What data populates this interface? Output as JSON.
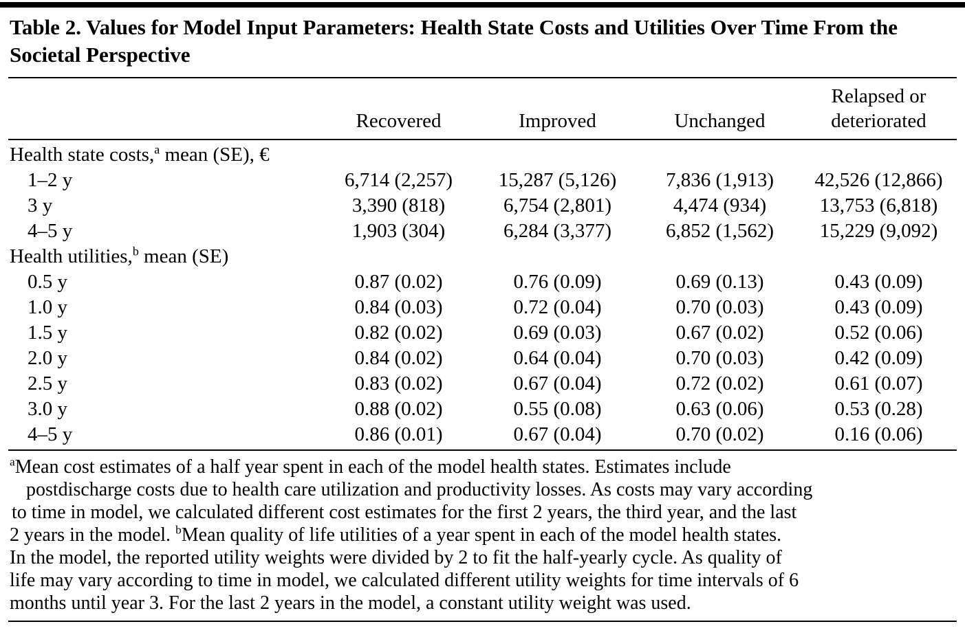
{
  "title": "Table 2. Values for Model Input Parameters: Health State Costs and Utilities Over Time From the Societal Perspective",
  "table": {
    "columns": [
      "Recovered",
      "Improved",
      "Unchanged",
      "Relapsed or deteriorated"
    ],
    "rows": [
      {
        "type": "section",
        "label_pre": "Health state costs,",
        "sup": "a",
        "label_post": " mean (SE), €"
      },
      {
        "type": "data",
        "label": "1–2 y",
        "values": [
          "6,714 (2,257)",
          "15,287 (5,126)",
          "7,836 (1,913)",
          "42,526 (12,866)"
        ]
      },
      {
        "type": "data",
        "label": "3 y",
        "values": [
          "3,390 (818)",
          "6,754 (2,801)",
          "4,474 (934)",
          "13,753 (6,818)"
        ]
      },
      {
        "type": "data",
        "label": "4–5 y",
        "values": [
          "1,903 (304)",
          "6,284 (3,377)",
          "6,852 (1,562)",
          "15,229 (9,092)"
        ]
      },
      {
        "type": "section",
        "label_pre": "Health utilities,",
        "sup": "b",
        "label_post": " mean (SE)"
      },
      {
        "type": "data",
        "label": "0.5 y",
        "values": [
          "0.87 (0.02)",
          "0.76 (0.09)",
          "0.69 (0.13)",
          "0.43 (0.09)"
        ]
      },
      {
        "type": "data",
        "label": "1.0 y",
        "values": [
          "0.84 (0.03)",
          "0.72 (0.04)",
          "0.70 (0.03)",
          "0.43 (0.09)"
        ]
      },
      {
        "type": "data",
        "label": "1.5 y",
        "values": [
          "0.82 (0.02)",
          "0.69 (0.03)",
          "0.67 (0.02)",
          "0.52 (0.06)"
        ]
      },
      {
        "type": "data",
        "label": "2.0 y",
        "values": [
          "0.84 (0.02)",
          "0.64 (0.04)",
          "0.70 (0.03)",
          "0.42 (0.09)"
        ]
      },
      {
        "type": "data",
        "label": "2.5 y",
        "values": [
          "0.83 (0.02)",
          "0.67 (0.04)",
          "0.72 (0.02)",
          "0.61 (0.07)"
        ]
      },
      {
        "type": "data",
        "label": "3.0 y",
        "values": [
          "0.88 (0.02)",
          "0.55 (0.08)",
          "0.63 (0.06)",
          "0.53 (0.28)"
        ]
      },
      {
        "type": "data",
        "label": "4–5 y",
        "values": [
          "0.86 (0.01)",
          "0.67 (0.04)",
          "0.70 (0.02)",
          "0.16 (0.06)"
        ]
      }
    ]
  },
  "footnote": {
    "lines": [
      {
        "sup": "a",
        "text": "Mean cost estimates of a half year spent in each of the model health states. Estimates include"
      },
      {
        "text": "postdischarge costs due to health care utilization and productivity losses. As costs may vary according"
      },
      {
        "text": "to time in model, we calculated different cost estimates for the first 2 years, the third year, and the last"
      },
      {
        "pre": "2 years in the model. ",
        "sup": "b",
        "text": "Mean quality of life utilities of a year spent in each of the model health states."
      },
      {
        "text": "In the model, the reported utility weights were divided by 2 to fit the half-yearly cycle. As quality of"
      },
      {
        "text": "life may vary according to time in model, we calculated different utility weights for time intervals of 6"
      },
      {
        "text": "months until year 3. For the last 2 years in the model, a constant utility weight was used."
      }
    ]
  }
}
